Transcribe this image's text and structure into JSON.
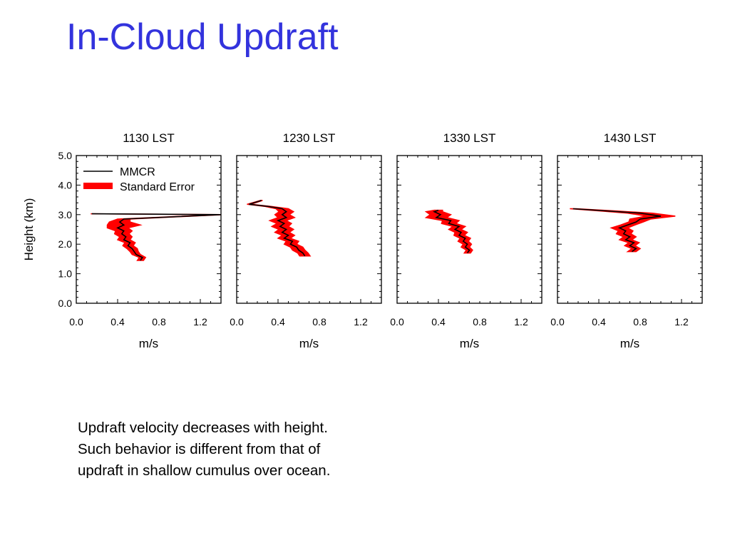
{
  "slide": {
    "title": "In-Cloud Updraft",
    "note_lines": [
      "Updraft velocity decreases with height.",
      "Such behavior is different from that of",
      "updraft in shallow cumulus over ocean."
    ]
  },
  "colors": {
    "title": "#3333dd",
    "profile_line": "#000000",
    "error_fill": "#ff0000"
  },
  "chart_data": {
    "type": "line",
    "ylabel": "Height (km)",
    "xlabel": "m/s",
    "xlim": [
      0.0,
      1.4
    ],
    "ylim": [
      0.0,
      5.0
    ],
    "xticks": [
      "0.0",
      "0.4",
      "0.8",
      "1.2"
    ],
    "xtick_values": [
      0.0,
      0.4,
      0.8,
      1.2
    ],
    "yticks": [
      "0.0",
      "1.0",
      "2.0",
      "3.0",
      "4.0",
      "5.0"
    ],
    "ytick_values": [
      0.0,
      1.0,
      2.0,
      3.0,
      4.0,
      5.0
    ],
    "legend": {
      "placement": "top-left",
      "entries": [
        {
          "label": "MMCR",
          "style": "line"
        },
        {
          "label": "Standard Error",
          "style": "band"
        }
      ]
    },
    "panels": [
      {
        "title": "1130 LST",
        "series": [
          {
            "name": "MMCR",
            "points": [
              [
                0.62,
                1.45
              ],
              [
                0.64,
                1.55
              ],
              [
                0.58,
                1.65
              ],
              [
                0.56,
                1.75
              ],
              [
                0.54,
                1.85
              ],
              [
                0.5,
                1.95
              ],
              [
                0.52,
                2.05
              ],
              [
                0.46,
                2.15
              ],
              [
                0.48,
                2.25
              ],
              [
                0.44,
                2.35
              ],
              [
                0.46,
                2.45
              ],
              [
                0.4,
                2.55
              ],
              [
                0.46,
                2.65
              ],
              [
                0.42,
                2.75
              ],
              [
                0.46,
                2.85
              ],
              [
                1.4,
                3.0
              ],
              [
                0.15,
                3.03
              ]
            ],
            "stderr": [
              0.03,
              0.03,
              0.04,
              0.04,
              0.05,
              0.05,
              0.05,
              0.06,
              0.06,
              0.07,
              0.08,
              0.1,
              0.16,
              0.1,
              0.06,
              0.02,
              0.01
            ]
          }
        ]
      },
      {
        "title": "1230 LST",
        "series": [
          {
            "name": "MMCR",
            "points": [
              [
                0.66,
                1.6
              ],
              [
                0.64,
                1.7
              ],
              [
                0.6,
                1.8
              ],
              [
                0.58,
                1.9
              ],
              [
                0.52,
                2.0
              ],
              [
                0.54,
                2.1
              ],
              [
                0.46,
                2.2
              ],
              [
                0.5,
                2.3
              ],
              [
                0.44,
                2.4
              ],
              [
                0.48,
                2.5
              ],
              [
                0.42,
                2.6
              ],
              [
                0.46,
                2.7
              ],
              [
                0.4,
                2.8
              ],
              [
                0.48,
                2.9
              ],
              [
                0.44,
                3.0
              ],
              [
                0.48,
                3.1
              ],
              [
                0.44,
                3.2
              ],
              [
                0.3,
                3.28
              ],
              [
                0.12,
                3.35
              ],
              [
                0.24,
                3.48
              ]
            ],
            "stderr": [
              0.05,
              0.05,
              0.06,
              0.06,
              0.06,
              0.06,
              0.06,
              0.06,
              0.07,
              0.07,
              0.08,
              0.07,
              0.08,
              0.08,
              0.07,
              0.07,
              0.06,
              0.03,
              0.02,
              0.01
            ]
          }
        ]
      },
      {
        "title": "1330 LST",
        "series": [
          {
            "name": "MMCR",
            "points": [
              [
                0.68,
                1.7
              ],
              [
                0.7,
                1.8
              ],
              [
                0.66,
                1.9
              ],
              [
                0.68,
                2.0
              ],
              [
                0.64,
                2.1
              ],
              [
                0.66,
                2.2
              ],
              [
                0.6,
                2.3
              ],
              [
                0.62,
                2.4
              ],
              [
                0.56,
                2.5
              ],
              [
                0.6,
                2.6
              ],
              [
                0.5,
                2.7
              ],
              [
                0.52,
                2.8
              ],
              [
                0.38,
                2.9
              ],
              [
                0.42,
                3.0
              ],
              [
                0.36,
                3.1
              ],
              [
                0.4,
                3.15
              ]
            ],
            "stderr": [
              0.03,
              0.03,
              0.04,
              0.04,
              0.05,
              0.05,
              0.05,
              0.06,
              0.06,
              0.06,
              0.07,
              0.08,
              0.1,
              0.1,
              0.08,
              0.04
            ]
          }
        ]
      },
      {
        "title": "1430 LST",
        "series": [
          {
            "name": "MMCR",
            "points": [
              [
                0.72,
                1.75
              ],
              [
                0.76,
                1.85
              ],
              [
                0.7,
                1.95
              ],
              [
                0.74,
                2.05
              ],
              [
                0.66,
                2.15
              ],
              [
                0.7,
                2.25
              ],
              [
                0.64,
                2.35
              ],
              [
                0.66,
                2.45
              ],
              [
                0.6,
                2.55
              ],
              [
                0.68,
                2.65
              ],
              [
                0.76,
                2.75
              ],
              [
                0.8,
                2.85
              ],
              [
                1.0,
                2.95
              ],
              [
                0.8,
                3.05
              ],
              [
                0.5,
                3.12
              ],
              [
                0.15,
                3.2
              ]
            ],
            "stderr": [
              0.04,
              0.04,
              0.05,
              0.05,
              0.06,
              0.06,
              0.07,
              0.07,
              0.08,
              0.07,
              0.07,
              0.1,
              0.14,
              0.12,
              0.08,
              0.03
            ]
          }
        ]
      }
    ]
  }
}
